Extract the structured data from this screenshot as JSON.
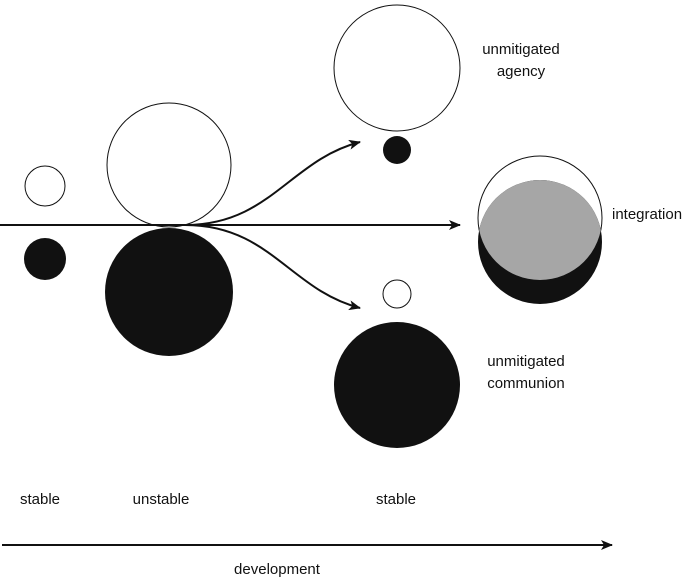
{
  "labels": {
    "agency": [
      "unmitigated",
      "agency"
    ],
    "integration": "integration",
    "communion": [
      "unmitigated",
      "communion"
    ]
  },
  "stages": [
    "stable",
    "unstable",
    "stable"
  ],
  "axis": {
    "label": "development"
  }
}
